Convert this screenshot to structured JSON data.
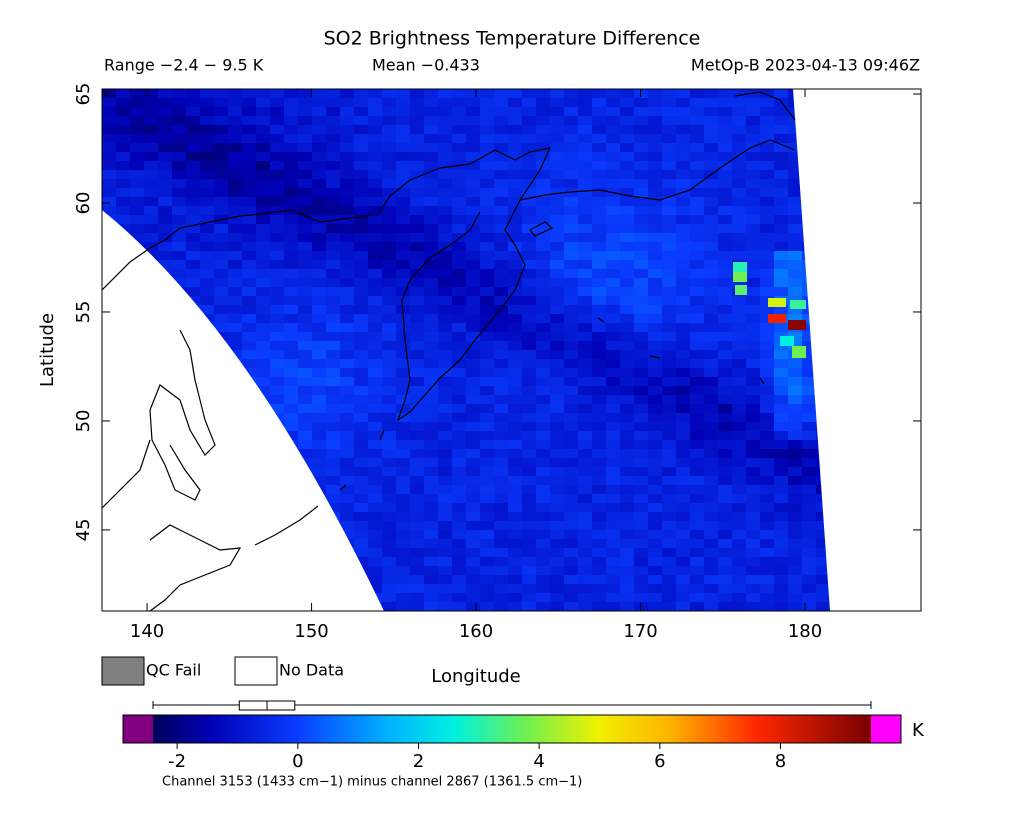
{
  "title": "SO2 Brightness Temperature Difference",
  "header": {
    "range": "Range −2.4 − 9.5 K",
    "mean": "Mean −0.433",
    "satellite": "MetOp-B 2023-04-13 09:46Z"
  },
  "map": {
    "x_label": "Longitude",
    "y_label": "Latitude",
    "xlim": [
      137.26,
      187.05
    ],
    "ylim": [
      41.28,
      65.23
    ],
    "xticks": [
      140,
      150,
      160,
      170,
      180
    ],
    "yticks": [
      45,
      50,
      55,
      60,
      65
    ]
  },
  "legend": {
    "qc_fail": "QC Fail",
    "no_data": "No Data"
  },
  "colorbar": {
    "lim": [
      -2.4,
      9.5
    ],
    "ticks": [
      -2,
      0,
      2,
      4,
      6,
      8
    ],
    "unit": "K",
    "distribution": {
      "min": -2.4,
      "q1": -0.97,
      "median": -0.51,
      "q3": -0.05,
      "max": 9.5
    }
  },
  "caption": "Channel 3153 (1433 cm−1) minus channel 2867 (1361.5 cm−1)"
}
